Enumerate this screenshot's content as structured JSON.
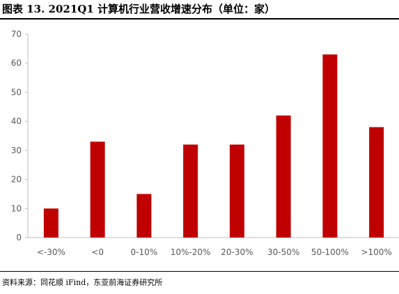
{
  "title": "图表 13. 2021Q1 计算机行业营收增速分布（单位：家）",
  "source": "资料来源：同花顺 iFind，东亚前海证券研究所",
  "colors": {
    "bar": "#c00000",
    "axis": "#bfbfbf",
    "text": "#595959"
  },
  "chart_data": {
    "type": "bar",
    "categories": [
      "<-30%",
      "<0",
      "0-10%",
      "10%-20%",
      "20-30%",
      "30-50%",
      "50-100%",
      ">100%"
    ],
    "values": [
      10,
      33,
      15,
      32,
      32,
      42,
      63,
      38
    ],
    "ylim": [
      0,
      70
    ],
    "yticks": [
      0,
      10,
      20,
      30,
      40,
      50,
      60,
      70
    ],
    "grid": false,
    "legend": "none"
  }
}
